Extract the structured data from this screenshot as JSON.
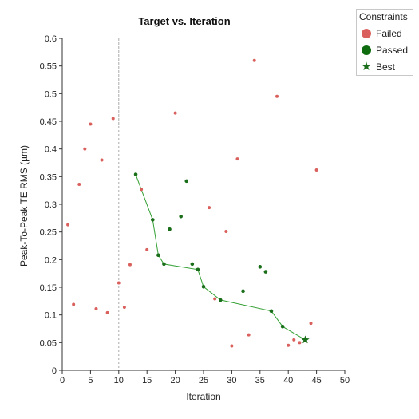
{
  "chart_data": {
    "type": "scatter",
    "title": "Target vs. Iteration",
    "xlabel": "Iteration",
    "ylabel": "Peak-To-Peak TE RMS (µm)",
    "xlim": [
      0,
      50
    ],
    "ylim": [
      0,
      0.6
    ],
    "xticks": [
      "0",
      "5",
      "10",
      "15",
      "20",
      "25",
      "30",
      "35",
      "40",
      "45",
      "50"
    ],
    "yticks": [
      "0",
      "0.05",
      "0.1",
      "0.15",
      "0.2",
      "0.25",
      "0.3",
      "0.35",
      "0.4",
      "0.45",
      "0.5",
      "0.55",
      "0.6"
    ],
    "reference_line_x": 10,
    "grid": false,
    "legend_position": "top-right",
    "legend_title": "Constraints",
    "series": [
      {
        "name": "Failed",
        "color": "#d9605c",
        "points": [
          [
            1,
            0.263
          ],
          [
            2,
            0.119
          ],
          [
            3,
            0.336
          ],
          [
            4,
            0.4
          ],
          [
            5,
            0.445
          ],
          [
            6,
            0.111
          ],
          [
            7,
            0.38
          ],
          [
            8,
            0.104
          ],
          [
            9,
            0.455
          ],
          [
            10,
            0.158
          ],
          [
            11,
            0.114
          ],
          [
            12,
            0.191
          ],
          [
            14,
            0.327
          ],
          [
            15,
            0.218
          ],
          [
            20,
            0.465
          ],
          [
            26,
            0.294
          ],
          [
            27,
            0.129
          ],
          [
            29,
            0.251
          ],
          [
            30,
            0.044
          ],
          [
            31,
            0.382
          ],
          [
            33,
            0.064
          ],
          [
            34,
            0.56
          ],
          [
            38,
            0.495
          ],
          [
            40,
            0.045
          ],
          [
            41,
            0.055
          ],
          [
            42,
            0.05
          ],
          [
            44,
            0.085
          ],
          [
            45,
            0.362
          ]
        ]
      },
      {
        "name": "Passed",
        "color": "#1a6e1a",
        "points": [
          [
            13,
            0.354
          ],
          [
            16,
            0.272
          ],
          [
            17,
            0.208
          ],
          [
            18,
            0.192
          ],
          [
            19,
            0.255
          ],
          [
            21,
            0.278
          ],
          [
            22,
            0.342
          ],
          [
            23,
            0.192
          ],
          [
            24,
            0.182
          ],
          [
            25,
            0.151
          ],
          [
            28,
            0.127
          ],
          [
            32,
            0.143
          ],
          [
            35,
            0.187
          ],
          [
            36,
            0.178
          ],
          [
            37,
            0.107
          ],
          [
            39,
            0.079
          ]
        ]
      },
      {
        "name": "Best",
        "color": "#1a6e1a",
        "points": [
          [
            43,
            0.055
          ]
        ]
      }
    ],
    "best_path": [
      [
        13,
        0.354
      ],
      [
        16,
        0.272
      ],
      [
        17,
        0.208
      ],
      [
        18,
        0.192
      ],
      [
        24,
        0.182
      ],
      [
        25,
        0.151
      ],
      [
        28,
        0.127
      ],
      [
        37,
        0.107
      ],
      [
        39,
        0.079
      ],
      [
        43,
        0.055
      ]
    ],
    "best_path_color": "#33a033"
  },
  "legend": {
    "title": "Constraints",
    "items": [
      {
        "label": "Failed",
        "color": "#d9605c",
        "icon": "circle-icon"
      },
      {
        "label": "Passed",
        "color": "#0e6b0e",
        "icon": "circle-icon"
      },
      {
        "label": "Best",
        "color": "#1a6e1a",
        "icon": "star-icon"
      }
    ]
  }
}
